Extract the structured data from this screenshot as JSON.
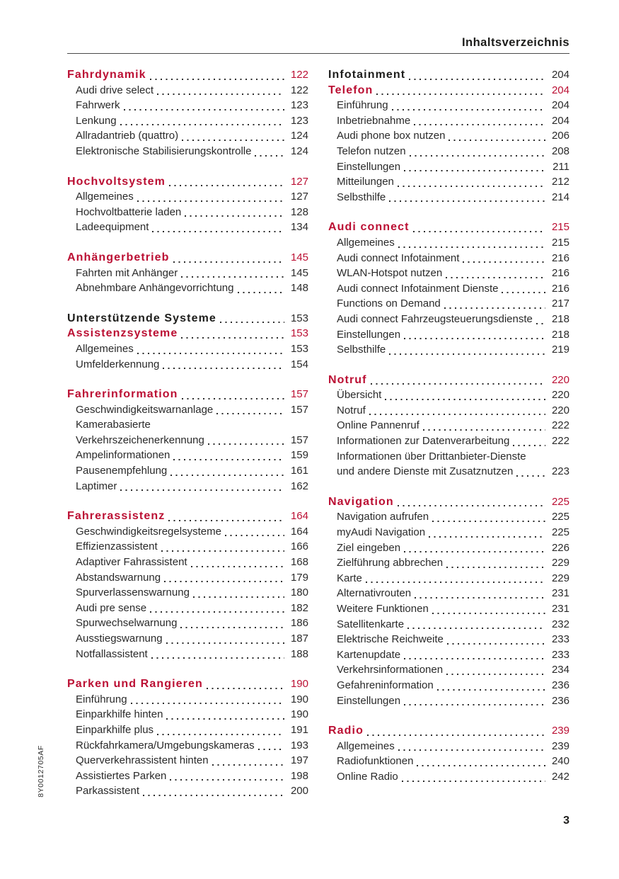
{
  "page": {
    "title": "Inhaltsverzeichnis",
    "doc_code": "8Y0012705AF",
    "page_number": "3"
  },
  "colors": {
    "accent_red": "#bb0f33",
    "text_dark": "#1d1d1b",
    "rule_gray": "#4a4a4a"
  },
  "toc": {
    "left_column": [
      {
        "rows": [
          {
            "type": "chapter",
            "label": "Fahrdynamik",
            "page": "122"
          },
          {
            "type": "item",
            "label": "Audi drive select",
            "page": "122"
          },
          {
            "type": "item",
            "label": "Fahrwerk",
            "page": "123"
          },
          {
            "type": "item",
            "label": "Lenkung",
            "page": "123"
          },
          {
            "type": "item",
            "label": "Allradantrieb (quattro)",
            "page": "124"
          },
          {
            "type": "item",
            "label": "Elektronische Stabilisierungskontrolle",
            "page": "124"
          }
        ]
      },
      {
        "rows": [
          {
            "type": "chapter",
            "label": "Hochvoltsystem",
            "page": "127"
          },
          {
            "type": "item",
            "label": "Allgemeines",
            "page": "127"
          },
          {
            "type": "item",
            "label": "Hochvoltbatterie laden",
            "page": "128"
          },
          {
            "type": "item",
            "label": "Ladeequipment",
            "page": "134"
          }
        ]
      },
      {
        "rows": [
          {
            "type": "chapter",
            "label": "Anhängerbetrieb",
            "page": "145"
          },
          {
            "type": "item",
            "label": "Fahrten mit Anhänger",
            "page": "145"
          },
          {
            "type": "item",
            "label": "Abnehmbare Anhängevorrichtung",
            "page": "148"
          }
        ]
      },
      {
        "rows": [
          {
            "type": "part",
            "label": "Unterstützende Systeme",
            "page": "153"
          },
          {
            "type": "chapter",
            "label": "Assistenzsysteme",
            "page": "153"
          },
          {
            "type": "item",
            "label": "Allgemeines",
            "page": "153"
          },
          {
            "type": "item",
            "label": "Umfelderkennung",
            "page": "154"
          }
        ]
      },
      {
        "rows": [
          {
            "type": "chapter",
            "label": "Fahrerinformation",
            "page": "157"
          },
          {
            "type": "item",
            "label": "Geschwindigkeitswarnanlage",
            "page": "157"
          },
          {
            "type": "item",
            "pre_line": "Kamerabasierte",
            "label": "Verkehrszeichenerkennung",
            "page": "157"
          },
          {
            "type": "item",
            "label": "Ampelinformationen",
            "page": "159"
          },
          {
            "type": "item",
            "label": "Pausenempfehlung",
            "page": "161"
          },
          {
            "type": "item",
            "label": "Laptimer",
            "page": "162"
          }
        ]
      },
      {
        "rows": [
          {
            "type": "chapter",
            "label": "Fahrerassistenz",
            "page": "164"
          },
          {
            "type": "item",
            "label": "Geschwindigkeitsregelsysteme",
            "page": "164"
          },
          {
            "type": "item",
            "label": "Effizienzassistent",
            "page": "166"
          },
          {
            "type": "item",
            "label": "Adaptiver Fahrassistent",
            "page": "168"
          },
          {
            "type": "item",
            "label": "Abstandswarnung",
            "page": "179"
          },
          {
            "type": "item",
            "label": "Spurverlassenswarnung",
            "page": "180"
          },
          {
            "type": "item",
            "label": "Audi pre sense",
            "page": "182"
          },
          {
            "type": "item",
            "label": "Spurwechselwarnung",
            "page": "186"
          },
          {
            "type": "item",
            "label": "Ausstiegswarnung",
            "page": "187"
          },
          {
            "type": "item",
            "label": "Notfallassistent",
            "page": "188"
          }
        ]
      },
      {
        "rows": [
          {
            "type": "chapter",
            "label": "Parken und Rangieren",
            "page": "190"
          },
          {
            "type": "item",
            "label": "Einführung",
            "page": "190"
          },
          {
            "type": "item",
            "label": "Einparkhilfe hinten",
            "page": "190"
          },
          {
            "type": "item",
            "label": "Einparkhilfe plus",
            "page": "191"
          },
          {
            "type": "item",
            "label": "Rückfahrkamera/Umgebungskameras",
            "page": "193"
          },
          {
            "type": "item",
            "label": "Querverkehrassistent hinten",
            "page": "197"
          },
          {
            "type": "item",
            "label": "Assistiertes Parken",
            "page": "198"
          },
          {
            "type": "item",
            "label": "Parkassistent",
            "page": "200"
          }
        ]
      }
    ],
    "right_column": [
      {
        "rows": [
          {
            "type": "part",
            "label": "Infotainment",
            "page": "204"
          },
          {
            "type": "chapter",
            "label": "Telefon",
            "page": "204"
          },
          {
            "type": "item",
            "label": "Einführung",
            "page": "204"
          },
          {
            "type": "item",
            "label": "Inbetriebnahme",
            "page": "204"
          },
          {
            "type": "item",
            "label": "Audi phone box nutzen",
            "page": "206"
          },
          {
            "type": "item",
            "label": "Telefon nutzen",
            "page": "208"
          },
          {
            "type": "item",
            "label": "Einstellungen",
            "page": "211"
          },
          {
            "type": "item",
            "label": "Mitteilungen",
            "page": "212"
          },
          {
            "type": "item",
            "label": "Selbsthilfe",
            "page": "214"
          }
        ]
      },
      {
        "rows": [
          {
            "type": "chapter",
            "label": "Audi connect",
            "page": "215"
          },
          {
            "type": "item",
            "label": "Allgemeines",
            "page": "215"
          },
          {
            "type": "item",
            "label": "Audi connect Infotainment",
            "page": "216"
          },
          {
            "type": "item",
            "label": "WLAN-Hotspot nutzen",
            "page": "216"
          },
          {
            "type": "item",
            "label": "Audi connect Infotainment Dienste",
            "page": "216"
          },
          {
            "type": "item",
            "label": "Functions on Demand",
            "page": "217"
          },
          {
            "type": "item",
            "label": "Audi connect Fahrzeugsteuerungsdienste",
            "page": "218"
          },
          {
            "type": "item",
            "label": "Einstellungen",
            "page": "218"
          },
          {
            "type": "item",
            "label": "Selbsthilfe",
            "page": "219"
          }
        ]
      },
      {
        "rows": [
          {
            "type": "chapter",
            "label": "Notruf",
            "page": "220"
          },
          {
            "type": "item",
            "label": "Übersicht",
            "page": "220"
          },
          {
            "type": "item",
            "label": "Notruf",
            "page": "220"
          },
          {
            "type": "item",
            "label": "Online Pannenruf",
            "page": "222"
          },
          {
            "type": "item",
            "label": "Informationen zur Datenverarbeitung",
            "page": "222"
          },
          {
            "type": "item",
            "pre_line": "Informationen über Drittanbieter-Dienste",
            "label": "und andere Dienste mit Zusatznutzen",
            "page": "223"
          }
        ]
      },
      {
        "rows": [
          {
            "type": "chapter",
            "label": "Navigation",
            "page": "225"
          },
          {
            "type": "item",
            "label": "Navigation aufrufen",
            "page": "225"
          },
          {
            "type": "item",
            "label": "myAudi Navigation",
            "page": "225"
          },
          {
            "type": "item",
            "label": "Ziel eingeben",
            "page": "226"
          },
          {
            "type": "item",
            "label": "Zielführung abbrechen",
            "page": "229"
          },
          {
            "type": "item",
            "label": "Karte",
            "page": "229"
          },
          {
            "type": "item",
            "label": "Alternativrouten",
            "page": "231"
          },
          {
            "type": "item",
            "label": "Weitere Funktionen",
            "page": "231"
          },
          {
            "type": "item",
            "label": "Satellitenkarte",
            "page": "232"
          },
          {
            "type": "item",
            "label": "Elektrische Reichweite",
            "page": "233"
          },
          {
            "type": "item",
            "label": "Kartenupdate",
            "page": "233"
          },
          {
            "type": "item",
            "label": "Verkehrsinformationen",
            "page": "234"
          },
          {
            "type": "item",
            "label": "Gefahreninformation",
            "page": "236"
          },
          {
            "type": "item",
            "label": "Einstellungen",
            "page": "236"
          }
        ]
      },
      {
        "rows": [
          {
            "type": "chapter",
            "label": "Radio",
            "page": "239"
          },
          {
            "type": "item",
            "label": "Allgemeines",
            "page": "239"
          },
          {
            "type": "item",
            "label": "Radiofunktionen",
            "page": "240"
          },
          {
            "type": "item",
            "label": "Online Radio",
            "page": "242"
          }
        ]
      }
    ]
  }
}
